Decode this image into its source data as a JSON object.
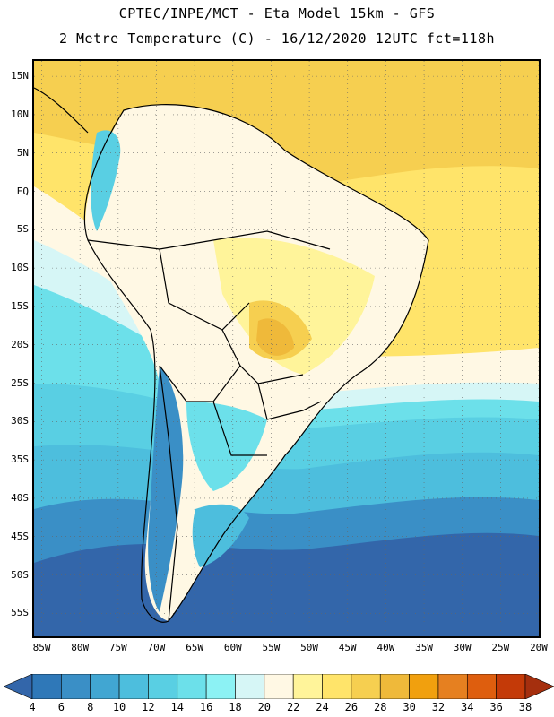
{
  "header": {
    "line1": "CPTEC/INPE/MCT -  Eta Model 15km - GFS",
    "line2": "2 Metre Temperature (C) - 16/12/2020 12UTC fct=118h"
  },
  "map": {
    "lat_labels": [
      "15N",
      "10N",
      "5N",
      "EQ",
      "5S",
      "10S",
      "15S",
      "20S",
      "25S",
      "30S",
      "35S",
      "40S",
      "45S",
      "50S",
      "55S"
    ],
    "lon_labels": [
      "85W",
      "80W",
      "75W",
      "70W",
      "65W",
      "60W",
      "55W",
      "50W",
      "45W",
      "40W",
      "35W",
      "30W",
      "25W",
      "20W"
    ],
    "lat_range": [
      17,
      -58
    ],
    "lon_range": [
      -86,
      -20
    ],
    "land_border_color": "#000000",
    "grid": "dotted"
  },
  "legend": {
    "levels": [
      "4",
      "6",
      "8",
      "10",
      "12",
      "14",
      "16",
      "18",
      "20",
      "22",
      "24",
      "26",
      "28",
      "30",
      "32",
      "34",
      "36",
      "38"
    ],
    "colors": [
      "#3366aa",
      "#2f78b8",
      "#3a8fc6",
      "#41a6d2",
      "#4dbedd",
      "#59cfe3",
      "#6ce0ea",
      "#8cf2f4",
      "#d6f6f6",
      "#fff8e4",
      "#fff49a",
      "#ffe46a",
      "#f6cf50",
      "#efb93a",
      "#f1a00e",
      "#e68020",
      "#de5e0e",
      "#c43a08",
      "#a52f0e"
    ]
  }
}
